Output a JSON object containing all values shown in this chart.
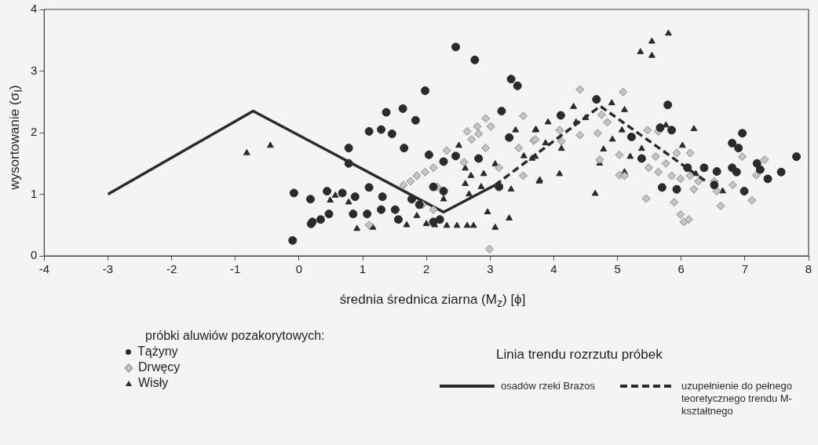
{
  "chart_data": {
    "type": "scatter",
    "xlabel": "średnia średnica ziarna (M$_{z}$) [ϕ]",
    "ylabel": "wysortowanie (σ$_{I}$)",
    "xlim": [
      -4,
      8
    ],
    "xticks": [
      -4,
      -3,
      -2,
      -1,
      0,
      1,
      2,
      3,
      4,
      5,
      6,
      7,
      8
    ],
    "ylim": [
      0,
      4
    ],
    "yticks": [
      0,
      1,
      2,
      3,
      4
    ],
    "grid": false,
    "legend": "bottom",
    "legend_title": "próbki aluwiów pozakorytowych:",
    "annotations": [
      "Linia trendu rozrzutu próbek"
    ],
    "series": [
      {
        "name": "Tążyny",
        "type": "scatter",
        "marker": "circle",
        "color": "#2b2b2b",
        "x": [
          -0.08,
          0.18,
          0.19,
          -0.1,
          2.46,
          2.76,
          1.98,
          1.37,
          1.63,
          1.83,
          1.1,
          1.29,
          1.46,
          0.78,
          1.65,
          0.78,
          3.33,
          3.43,
          3.18,
          3.3,
          2.04,
          2.27,
          2.46,
          2.82,
          3.14,
          0.44,
          0.68,
          0.88,
          1.1,
          1.31,
          0.21,
          0.34,
          0.47,
          0.85,
          1.07,
          1.29,
          1.51,
          1.56,
          1.77,
          1.89,
          2.11,
          2.27,
          2.11,
          2.21,
          4.67,
          5.79,
          4.11,
          5.85,
          5.22,
          6.96,
          6.8,
          6.9,
          5.38,
          6.1,
          6.36,
          6.56,
          6.8,
          6.87,
          7.19,
          7.24,
          7.36,
          7.57,
          7.81,
          5.7,
          5.93,
          6.99,
          6.52,
          5.67
        ],
        "values": [
          1.02,
          0.92,
          0.52,
          0.25,
          3.39,
          3.18,
          2.68,
          2.33,
          2.39,
          2.2,
          2.02,
          2.05,
          1.98,
          1.75,
          1.75,
          1.5,
          2.87,
          2.76,
          2.35,
          1.92,
          1.64,
          1.53,
          1.62,
          1.58,
          1.12,
          1.05,
          1.02,
          0.96,
          1.11,
          0.96,
          0.55,
          0.59,
          0.68,
          0.68,
          0.68,
          0.75,
          0.75,
          0.59,
          0.92,
          0.83,
          1.12,
          1.05,
          0.55,
          0.59,
          2.54,
          2.45,
          2.28,
          2.04,
          1.93,
          1.99,
          1.83,
          1.75,
          1.58,
          1.43,
          1.43,
          1.37,
          1.43,
          1.36,
          1.5,
          1.4,
          1.25,
          1.36,
          1.61,
          1.11,
          1.08,
          1.05,
          1.15,
          2.08
        ]
      },
      {
        "name": "Drwęcy",
        "type": "scatter",
        "marker": "diamond",
        "color": "#c4c4c4",
        "x": [
          3.52,
          2.93,
          3.01,
          2.8,
          2.64,
          2.82,
          2.71,
          2.93,
          2.32,
          2.59,
          2.11,
          1.98,
          1.85,
          1.75,
          1.64,
          3.14,
          3.52,
          3.68,
          3.45,
          1.1,
          1.94,
          2.11,
          2.17,
          2.99,
          4.41,
          5.09,
          4.75,
          4.84,
          4.41,
          4.09,
          3.71,
          4.12,
          4.69,
          5.47,
          5.64,
          5.03,
          4.72,
          5.6,
          5.93,
          6.14,
          5.49,
          5.76,
          5.64,
          5.03,
          5.11,
          5.85,
          5.99,
          6.14,
          6.27,
          6.52,
          6.81,
          6.96,
          7.31,
          7.18,
          6.2,
          6.56,
          6.62,
          7.11,
          5.45,
          5.89,
          5.99,
          6.12,
          6.04
        ],
        "values": [
          2.27,
          2.23,
          2.1,
          2.1,
          2.02,
          1.98,
          1.89,
          1.75,
          1.71,
          1.52,
          1.43,
          1.36,
          1.3,
          1.21,
          1.15,
          1.43,
          1.3,
          1.87,
          1.75,
          0.5,
          0.83,
          0.75,
          1.12,
          0.11,
          2.7,
          2.66,
          2.29,
          2.17,
          1.96,
          2.04,
          1.89,
          1.86,
          1.99,
          2.04,
          2.02,
          1.64,
          1.56,
          1.61,
          1.67,
          1.67,
          1.43,
          1.5,
          1.36,
          1.31,
          1.3,
          1.3,
          1.25,
          1.3,
          1.21,
          1.21,
          1.15,
          1.61,
          1.56,
          1.31,
          1.08,
          1.05,
          0.81,
          0.9,
          0.93,
          0.87,
          0.67,
          0.59,
          0.55
        ]
      },
      {
        "name": "Wisły",
        "type": "scatter",
        "marker": "triangle",
        "color": "#2b2b2b",
        "x": [
          -0.82,
          -0.45,
          2.51,
          3.4,
          3.72,
          3.33,
          3.3,
          3.08,
          2.96,
          3.77,
          2.7,
          2.61,
          2.27,
          2.0,
          2.13,
          2.32,
          2.48,
          2.64,
          2.74,
          1.69,
          1.85,
          0.91,
          1.16,
          0.49,
          0.57,
          0.78,
          2.61,
          2.9,
          3.53,
          3.66,
          3.08,
          2.86,
          2.67,
          5.8,
          5.54,
          5.36,
          5.54,
          4.31,
          4.91,
          5.11,
          3.91,
          4.35,
          4.5,
          3.71,
          4.12,
          3.87,
          3.71,
          4.92,
          4.78,
          5.07,
          5.76,
          6.2,
          6.02,
          5.38,
          4.72,
          4.09,
          3.78,
          4.65,
          5.2,
          6.23,
          6.65,
          5.11
        ],
        "values": [
          1.67,
          1.79,
          1.79,
          2.04,
          2.05,
          1.08,
          0.61,
          0.46,
          0.71,
          1.21,
          1.3,
          1.17,
          0.92,
          0.52,
          0.5,
          0.49,
          0.49,
          0.49,
          0.49,
          0.5,
          0.65,
          0.44,
          0.46,
          0.9,
          0.98,
          0.87,
          1.42,
          1.33,
          1.62,
          1.58,
          1.49,
          1.12,
          1.0,
          3.61,
          3.48,
          3.31,
          3.25,
          2.42,
          2.48,
          2.37,
          2.17,
          2.17,
          2.24,
          2.04,
          1.74,
          1.83,
          1.61,
          1.89,
          1.73,
          2.04,
          2.12,
          2.06,
          1.79,
          1.74,
          1.5,
          1.33,
          1.23,
          1.01,
          1.61,
          1.33,
          1.05,
          1.36
        ]
      },
      {
        "name": "osadów rzeki Brazos",
        "type": "line",
        "marker": "none",
        "line_style": "solid",
        "color": "#2b2b2b",
        "x": [
          -3,
          -0.72,
          2.27,
          3.08
        ],
        "values": [
          1,
          2.35,
          0.71,
          1.15
        ]
      },
      {
        "name": "uzupełnienie do pełnego teoretycznego trendu M-kształtnego",
        "type": "line",
        "marker": "none",
        "line_style": "dashed",
        "color": "#2b2b2b",
        "x": [
          3.08,
          4.73,
          6.4
        ],
        "values": [
          1.15,
          2.43,
          1.2
        ]
      }
    ]
  }
}
